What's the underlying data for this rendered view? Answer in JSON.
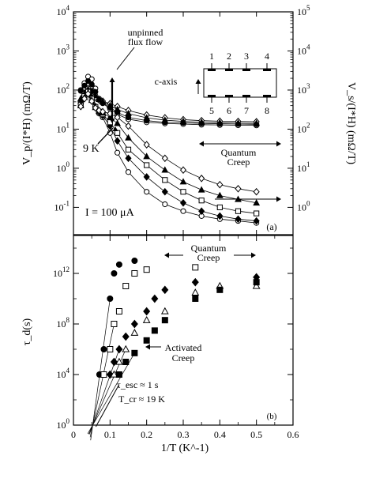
{
  "chart_data": [
    {
      "panel": "a",
      "type": "scatter",
      "panel_label": "(a)",
      "ylabel_left": "V_p/(I*H) (mΩ/T)",
      "ylabel_right": "V_s/(I*H) (mΩ/T)",
      "yscale": "log",
      "ylim_left": [
        0.02,
        10000
      ],
      "ylim_right": [
        0.2,
        100000
      ],
      "y_ticks_left": [
        "10^-1",
        "10^0",
        "10^1",
        "10^2",
        "10^3",
        "10^4"
      ],
      "y_ticks_right": [
        "10^0",
        "10^1",
        "10^2",
        "10^3",
        "10^4",
        "10^5"
      ],
      "x_shared_with": "b",
      "grid": false,
      "annotations": {
        "unpinned": "unpinned",
        "flux_flow": "flux flow",
        "quantum": "Quantum",
        "creep": "Creep",
        "current": "I = 100 μA",
        "temperature": "9 K",
        "c_axis": "c-axis",
        "contacts_top": [
          "1",
          "2",
          "3",
          "4"
        ],
        "contacts_bottom": [
          "5",
          "6",
          "7",
          "8"
        ]
      },
      "series": [
        {
          "marker": "open-circle",
          "group": "secondary",
          "x": [
            0.02,
            0.03,
            0.04,
            0.05,
            0.06,
            0.07,
            0.08,
            0.1,
            0.12,
            0.15,
            0.2,
            0.25,
            0.3,
            0.35,
            0.4,
            0.45,
            0.5
          ],
          "y": [
            1000,
            1500,
            2200,
            1900,
            1100,
            600,
            460,
            330,
            240,
            180,
            150,
            140,
            135,
            130,
            128,
            126,
            125
          ]
        },
        {
          "marker": "filled-circle",
          "group": "secondary",
          "x": [
            0.02,
            0.03,
            0.04,
            0.05,
            0.06,
            0.07,
            0.08,
            0.1,
            0.12,
            0.15,
            0.2,
            0.25,
            0.3,
            0.35,
            0.4,
            0.45,
            0.5
          ],
          "y": [
            950,
            1300,
            1700,
            1400,
            900,
            560,
            470,
            360,
            270,
            200,
            165,
            150,
            145,
            140,
            137,
            135,
            133
          ]
        },
        {
          "marker": "open-diamond",
          "group": "secondary",
          "x": [
            0.02,
            0.03,
            0.04,
            0.05,
            0.06,
            0.07,
            0.08,
            0.1,
            0.12,
            0.15,
            0.2,
            0.25,
            0.3,
            0.35,
            0.4,
            0.45,
            0.5
          ],
          "y": [
            500,
            700,
            900,
            800,
            650,
            560,
            520,
            450,
            380,
            300,
            230,
            195,
            175,
            165,
            160,
            158,
            155
          ]
        },
        {
          "marker": "filled-triangle",
          "group": "secondary",
          "x": [
            0.02,
            0.03,
            0.04,
            0.05,
            0.06,
            0.07,
            0.08,
            0.1,
            0.12,
            0.15,
            0.2,
            0.25,
            0.3,
            0.35,
            0.4,
            0.45,
            0.5
          ],
          "y": [
            600,
            850,
            1100,
            950,
            720,
            580,
            500,
            400,
            320,
            250,
            195,
            170,
            158,
            150,
            146,
            143,
            141
          ]
        },
        {
          "marker": "open-circle",
          "group": "primary",
          "x": [
            0.02,
            0.03,
            0.04,
            0.05,
            0.06,
            0.07,
            0.08,
            0.1,
            0.12,
            0.15,
            0.2,
            0.25,
            0.3,
            0.35,
            0.4,
            0.45,
            0.5
          ],
          "y": [
            45,
            80,
            110,
            70,
            38,
            25,
            20,
            8,
            2.5,
            0.8,
            0.25,
            0.12,
            0.08,
            0.06,
            0.05,
            0.045,
            0.04
          ]
        },
        {
          "marker": "filled-diamond",
          "group": "primary",
          "x": [
            0.02,
            0.03,
            0.04,
            0.05,
            0.06,
            0.07,
            0.08,
            0.1,
            0.12,
            0.15,
            0.2,
            0.25,
            0.3,
            0.35,
            0.4,
            0.45,
            0.5
          ],
          "y": [
            45,
            75,
            100,
            65,
            38,
            27,
            22,
            12,
            5,
            1.8,
            0.6,
            0.25,
            0.13,
            0.08,
            0.06,
            0.05,
            0.045
          ]
        },
        {
          "marker": "open-square",
          "group": "primary",
          "x": [
            0.02,
            0.03,
            0.04,
            0.05,
            0.06,
            0.07,
            0.08,
            0.1,
            0.12,
            0.15,
            0.2,
            0.25,
            0.3,
            0.35,
            0.4,
            0.45,
            0.5
          ],
          "y": [
            42,
            70,
            90,
            60,
            37,
            28,
            24,
            15,
            8,
            3,
            1.2,
            0.5,
            0.25,
            0.15,
            0.1,
            0.08,
            0.07
          ]
        },
        {
          "marker": "filled-triangle",
          "group": "primary",
          "x": [
            0.02,
            0.03,
            0.04,
            0.05,
            0.06,
            0.07,
            0.08,
            0.1,
            0.12,
            0.15,
            0.2,
            0.25,
            0.3,
            0.35,
            0.4,
            0.45,
            0.5
          ],
          "y": [
            40,
            65,
            85,
            55,
            36,
            29,
            26,
            20,
            14,
            6,
            2,
            0.9,
            0.45,
            0.28,
            0.2,
            0.16,
            0.13
          ]
        },
        {
          "marker": "open-diamond",
          "group": "primary",
          "x": [
            0.02,
            0.03,
            0.04,
            0.05,
            0.06,
            0.07,
            0.08,
            0.1,
            0.12,
            0.15,
            0.2,
            0.25,
            0.3,
            0.35,
            0.4,
            0.45,
            0.5
          ],
          "y": [
            38,
            60,
            80,
            52,
            35,
            30,
            28,
            25,
            20,
            12,
            4,
            1.8,
            0.9,
            0.55,
            0.38,
            0.3,
            0.25
          ]
        }
      ]
    },
    {
      "panel": "b",
      "type": "scatter",
      "panel_label": "(b)",
      "xlabel": "1/T (K^-1)",
      "ylabel": "τ_d(s)",
      "xlim": [
        0,
        0.6
      ],
      "x_ticks": [
        "0",
        "0.1",
        "0.2",
        "0.3",
        "0.4",
        "0.5",
        "0.6"
      ],
      "yscale": "log",
      "ylim": [
        1,
        1000000000000000.0
      ],
      "y_ticks": [
        "10^0",
        "10^4",
        "10^8",
        "10^12"
      ],
      "grid": false,
      "annotations": {
        "quantum": "Quantum",
        "creep_top": "Creep",
        "activated": "Activated",
        "creep_bottom": "Creep",
        "tau_esc": "τ_esc ≈ 1 s",
        "t_cr": "T_cr ≈ 19 K"
      },
      "series": [
        {
          "marker": "filled-circle",
          "x": [
            0.071,
            0.083,
            0.1,
            0.111,
            0.125,
            0.167
          ],
          "y": [
            10000.0,
            1000000.0,
            10000000000.0,
            1000000000000.0,
            5000000000000.0,
            10000000000000.0
          ]
        },
        {
          "marker": "open-square",
          "x": [
            0.083,
            0.1,
            0.111,
            0.125,
            0.143,
            0.167,
            0.2,
            0.333
          ],
          "y": [
            10000.0,
            1000000.0,
            100000000.0,
            1000000000.0,
            100000000000.0,
            1000000000000.0,
            2000000000000.0,
            3000000000000.0
          ]
        },
        {
          "marker": "filled-diamond",
          "x": [
            0.1,
            0.111,
            0.125,
            0.143,
            0.167,
            0.2,
            0.222,
            0.25,
            0.333,
            0.5
          ],
          "y": [
            10000.0,
            100000.0,
            1000000.0,
            10000000.0,
            100000000.0,
            1000000000.0,
            10000000000.0,
            50000000000.0,
            200000000000.0,
            500000000000.0
          ]
        },
        {
          "marker": "open-triangle",
          "x": [
            0.111,
            0.125,
            0.143,
            0.167,
            0.2,
            0.25,
            0.333,
            0.4,
            0.5
          ],
          "y": [
            10000.0,
            100000.0,
            1000000.0,
            20000000.0,
            200000000.0,
            1000000000.0,
            30000000000.0,
            100000000000.0,
            100000000000.0
          ]
        },
        {
          "marker": "filled-square",
          "x": [
            0.125,
            0.143,
            0.167,
            0.2,
            0.222,
            0.25,
            0.333,
            0.4,
            0.5
          ],
          "y": [
            10000.0,
            100000.0,
            500000.0,
            5000000.0,
            30000000.0,
            200000000.0,
            10000000000.0,
            50000000000.0,
            200000000000.0
          ]
        }
      ],
      "fit_lines_converge_at": [
        0.0526,
        1
      ]
    }
  ]
}
